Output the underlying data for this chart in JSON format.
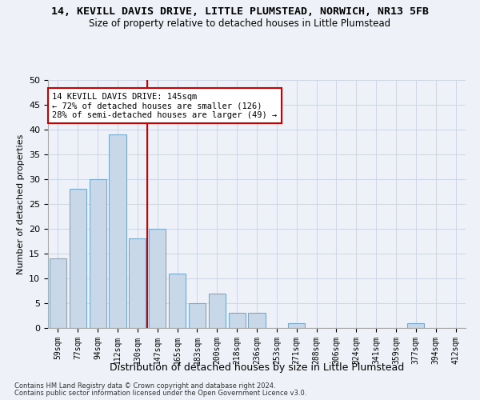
{
  "title": "14, KEVILL DAVIS DRIVE, LITTLE PLUMSTEAD, NORWICH, NR13 5FB",
  "subtitle": "Size of property relative to detached houses in Little Plumstead",
  "xlabel": "Distribution of detached houses by size in Little Plumstead",
  "ylabel": "Number of detached properties",
  "bar_labels": [
    "59sqm",
    "77sqm",
    "94sqm",
    "112sqm",
    "130sqm",
    "147sqm",
    "165sqm",
    "183sqm",
    "200sqm",
    "218sqm",
    "236sqm",
    "253sqm",
    "271sqm",
    "288sqm",
    "306sqm",
    "324sqm",
    "341sqm",
    "359sqm",
    "377sqm",
    "394sqm",
    "412sqm"
  ],
  "bar_values": [
    14,
    28,
    30,
    39,
    18,
    20,
    11,
    5,
    7,
    3,
    3,
    0,
    1,
    0,
    0,
    0,
    0,
    0,
    1,
    0,
    0
  ],
  "bar_color": "#c8d8e8",
  "bar_edge_color": "#7aa8c8",
  "ylim": [
    0,
    50
  ],
  "yticks": [
    0,
    5,
    10,
    15,
    20,
    25,
    30,
    35,
    40,
    45,
    50
  ],
  "property_label": "14 KEVILL DAVIS DRIVE: 145sqm",
  "annotation_line1": "← 72% of detached houses are smaller (126)",
  "annotation_line2": "28% of semi-detached houses are larger (49) →",
  "red_line_color": "#cc0000",
  "annotation_box_color": "#ffffff",
  "annotation_box_edge": "#cc0000",
  "grid_color": "#d0d8e8",
  "footnote1": "Contains HM Land Registry data © Crown copyright and database right 2024.",
  "footnote2": "Contains public sector information licensed under the Open Government Licence v3.0.",
  "bg_color": "#eef2f8"
}
